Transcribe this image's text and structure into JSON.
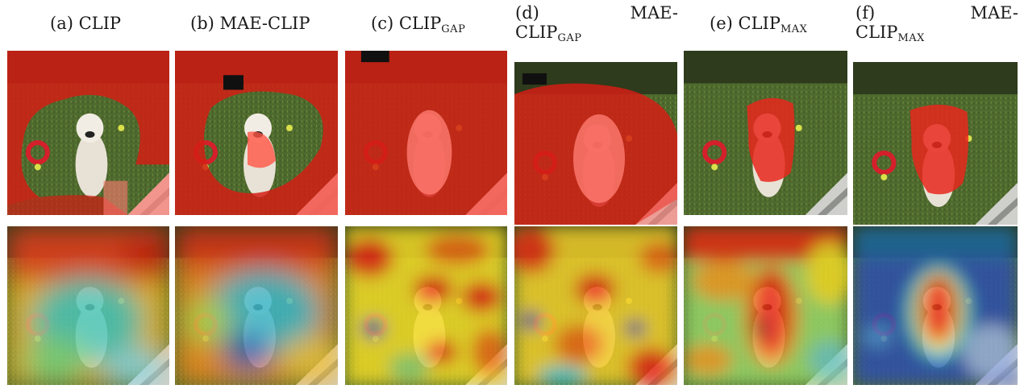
{
  "figure": {
    "captions": [
      {
        "letter": "(a)",
        "name": "CLIP",
        "sub": ""
      },
      {
        "letter": "(b)",
        "name": "MAE-CLIP",
        "sub": ""
      },
      {
        "letter": "(c)",
        "name": "CLIP",
        "sub": "GAP"
      },
      {
        "letter": "(d)",
        "name": "MAE-",
        "name2": "CLIP",
        "sub": "GAP"
      },
      {
        "letter": "(e)",
        "name": "CLIP",
        "sub": "MAX"
      },
      {
        "letter": "(f)",
        "name": "MAE-",
        "name2": "CLIP",
        "sub": "MAX"
      }
    ],
    "rows": [
      "segmentation-mask",
      "heatmap"
    ]
  },
  "colors": {
    "mask_red": "#d21e14",
    "mask_pink": "#ff7c72",
    "grass": "#4f6a2e",
    "heat_red": "#e61e0a",
    "heat_yellow": "#f3dc28",
    "heat_cyan": "#3ec7d2",
    "heat_blue": "#1a2ea0"
  }
}
